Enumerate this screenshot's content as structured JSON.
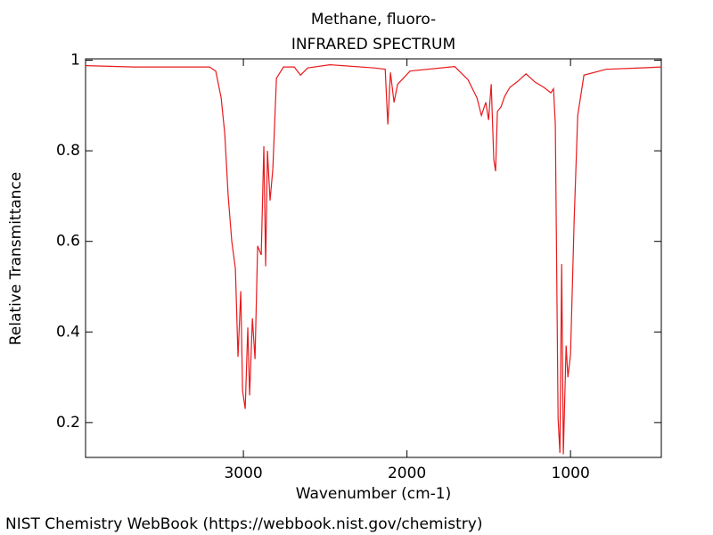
{
  "chart_data": {
    "type": "line",
    "title": "Methane, fluoro-",
    "subtitle": "INFRARED SPECTRUM",
    "x_label": "Wavenumber (cm-1)",
    "y_label": "Relative Transmittance",
    "credit": "NIST Chemistry WebBook (https://webbook.nist.gov/chemistry)",
    "xlim": [
      3965,
      445
    ],
    "ylim": [
      0.123,
      1.003
    ],
    "xticks": [
      3000,
      2000,
      1000
    ],
    "yticks": [
      0.2,
      0.4,
      0.6,
      0.8,
      1
    ],
    "x": [
      3965,
      3670,
      3207,
      3169,
      3136,
      3114,
      3093,
      3071,
      3049,
      3033,
      3016,
      3005,
      2989,
      2973,
      2962,
      2945,
      2929,
      2913,
      2891,
      2875,
      2864,
      2853,
      2837,
      2820,
      2798,
      2755,
      2689,
      2651,
      2607,
      2471,
      2199,
      2133,
      2117,
      2101,
      2079,
      2057,
      1981,
      1708,
      1627,
      1572,
      1545,
      1518,
      1501,
      1485,
      1469,
      1458,
      1447,
      1425,
      1403,
      1371,
      1327,
      1272,
      1218,
      1163,
      1120,
      1104,
      1093,
      1076,
      1065,
      1054,
      1044,
      1027,
      1016,
      1000,
      978,
      956,
      918,
      782,
      564,
      444
    ],
    "series": [
      {
        "color": "#e8191c",
        "values": [
          0.988,
          0.985,
          0.985,
          0.976,
          0.917,
          0.838,
          0.7,
          0.6,
          0.54,
          0.345,
          0.49,
          0.27,
          0.23,
          0.41,
          0.26,
          0.43,
          0.34,
          0.59,
          0.57,
          0.81,
          0.545,
          0.8,
          0.69,
          0.76,
          0.96,
          0.985,
          0.985,
          0.967,
          0.983,
          0.99,
          0.983,
          0.98,
          0.858,
          0.973,
          0.907,
          0.947,
          0.976,
          0.986,
          0.957,
          0.917,
          0.878,
          0.907,
          0.868,
          0.947,
          0.78,
          0.755,
          0.887,
          0.897,
          0.92,
          0.94,
          0.952,
          0.97,
          0.952,
          0.94,
          0.928,
          0.937,
          0.858,
          0.208,
          0.133,
          0.55,
          0.13,
          0.37,
          0.3,
          0.35,
          0.645,
          0.878,
          0.967,
          0.98,
          0.983,
          0.985
        ]
      }
    ]
  }
}
